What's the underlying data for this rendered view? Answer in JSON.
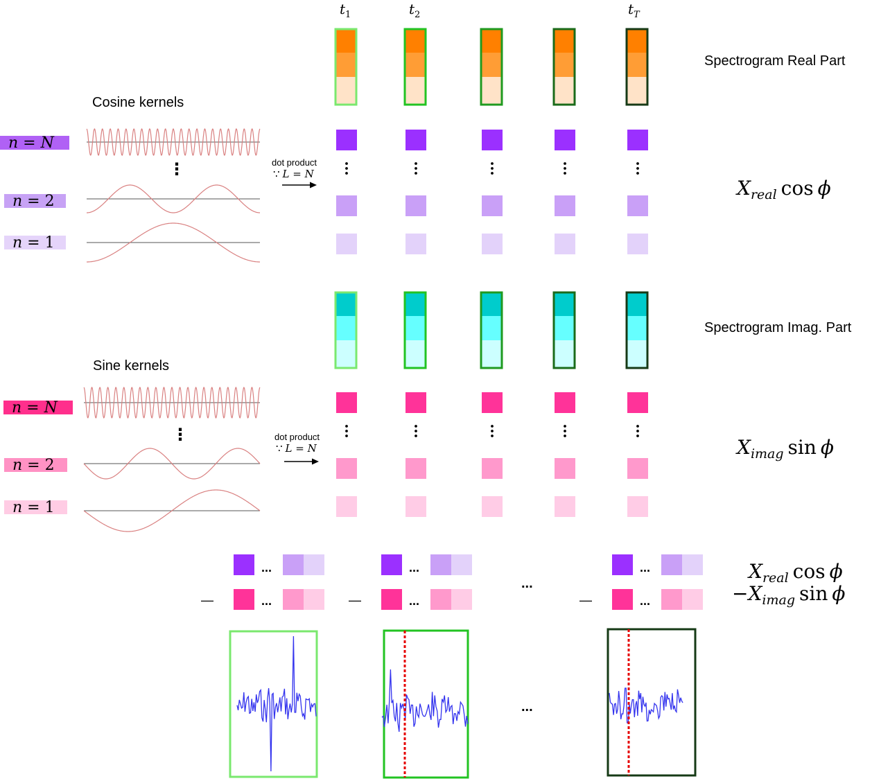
{
  "time_labels": {
    "t1": "t",
    "t1_sub": "1",
    "t2": "t",
    "t2_sub": "2",
    "tT": "t",
    "tT_sub": "T"
  },
  "real_section": {
    "title": "Spectrogram Real Part",
    "kernels_title": "Cosine kernels",
    "n_labels": [
      {
        "lhs": "n",
        "eq": " = ",
        "rhs": "N",
        "color": "#b061f5"
      },
      {
        "lhs": "n",
        "eq": " = ",
        "rhs": "2",
        "color": "#c7a2f5"
      },
      {
        "lhs": "n",
        "eq": " = ",
        "rhs": "1",
        "color": "#e5d4fa"
      }
    ],
    "dot_product": {
      "label": "dot product",
      "condition_symbol": "∵",
      "condition": "L = N"
    },
    "formula": {
      "var": "X",
      "sub": "real",
      "func": "cos",
      "arg": "ϕ"
    },
    "ellipsis": "⋮"
  },
  "imag_section": {
    "title": "Spectrogram Imag. Part",
    "kernels_title": "Sine kernels",
    "n_labels": [
      {
        "lhs": "n",
        "eq": " = ",
        "rhs": "N",
        "color": "#ff2f8c"
      },
      {
        "lhs": "n",
        "eq": " = ",
        "rhs": "2",
        "color": "#ff92c4"
      },
      {
        "lhs": "n",
        "eq": " = ",
        "rhs": "1",
        "color": "#ffcce4"
      }
    ],
    "dot_product": {
      "label": "dot product",
      "condition_symbol": "∵",
      "condition": "L = N"
    },
    "formula": {
      "var": "X",
      "sub": "imag",
      "func": "sin",
      "arg": "ϕ"
    },
    "ellipsis": "⋮"
  },
  "combine_section": {
    "formula_top": {
      "var": "X",
      "sub": "real",
      "func": "cos",
      "arg": "ϕ"
    },
    "formula_bottom": {
      "minus": "−",
      "var": "X",
      "sub": "imag",
      "func": "sin",
      "arg": "ϕ"
    },
    "minus_sign": "—",
    "dots": "...",
    "between_dots": "..."
  },
  "waveforms": {
    "between_dots": "..."
  },
  "colors": {
    "orange_dark": "#ff8000",
    "orange_mid": "#ff9d35",
    "orange_light": "#ffe3c8",
    "cyan_dark": "#00cccc",
    "cyan_mid": "#66ffff",
    "cyan_light": "#ccffff",
    "purple_dark": "#9b30ff",
    "purple_mid": "#c9a0f7",
    "purple_light": "#e3d2fa",
    "pink_dark": "#ff3399",
    "pink_mid": "#ff99cc",
    "pink_light": "#ffcce6",
    "frame_1": "#7ae86e",
    "frame_2": "#22c322",
    "frame_3": "#1f9a1f",
    "frame_4": "#1a6b1a",
    "frame_5": "#163a16",
    "kernel_wave": "#d98080",
    "signal": "#3333ee",
    "marker": "#e60000"
  }
}
